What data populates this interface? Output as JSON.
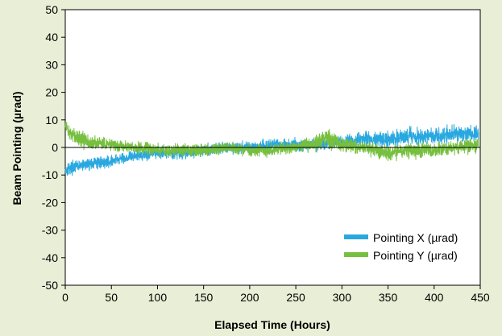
{
  "colors": {
    "background": "#e8efd6",
    "plot_background": "#ffffff",
    "series_x": "#29a8e0",
    "series_y": "#76bf3f"
  },
  "chart_data": {
    "type": "line",
    "title": "",
    "xlabel": "Elapsed Time (Hours)",
    "ylabel": "Beam Pointing (µrad)",
    "xlim": [
      0,
      450
    ],
    "ylim": [
      -50,
      50
    ],
    "x_ticks": [
      "0",
      "50",
      "100",
      "150",
      "200",
      "250",
      "300",
      "350",
      "400",
      "450"
    ],
    "y_ticks": [
      "50",
      "40",
      "30",
      "20",
      "10",
      "0",
      "-10",
      "-20",
      "-30",
      "-40",
      "-50"
    ],
    "grid": false,
    "legend_position": "bottom-right",
    "noise_note": "dense noisy traces; values are approximate trend (center) and band half-width at sampled hours",
    "series": [
      {
        "name": "Pointing X (µrad)",
        "color": "#29a8e0",
        "x": [
          0,
          10,
          25,
          50,
          75,
          100,
          125,
          150,
          175,
          200,
          225,
          250,
          275,
          300,
          325,
          350,
          375,
          400,
          425,
          448
        ],
        "center": [
          -8,
          -7,
          -6,
          -5,
          -3,
          -2,
          -2,
          -1,
          0,
          0,
          1,
          1,
          1,
          2,
          3,
          3,
          4,
          4,
          5,
          5
        ],
        "spread": [
          4,
          3,
          3,
          3,
          3,
          3,
          3,
          3,
          3,
          3,
          3,
          3,
          3,
          3,
          4,
          4,
          4,
          4,
          4,
          4
        ]
      },
      {
        "name": "Pointing Y (µrad)",
        "color": "#76bf3f",
        "x": [
          0,
          2,
          10,
          25,
          50,
          75,
          100,
          125,
          150,
          175,
          200,
          225,
          250,
          275,
          285,
          300,
          325,
          350,
          375,
          400,
          425,
          448
        ],
        "center": [
          8,
          6,
          4,
          2,
          1,
          0,
          -1,
          -1,
          -1,
          0,
          -1,
          -1,
          0,
          2,
          3,
          1,
          0,
          -2,
          -1,
          -1,
          0,
          1
        ],
        "spread": [
          5,
          4,
          4,
          4,
          3,
          3,
          3,
          3,
          3,
          3,
          3,
          3,
          3,
          4,
          5,
          4,
          3,
          4,
          4,
          4,
          3,
          4
        ]
      }
    ]
  }
}
